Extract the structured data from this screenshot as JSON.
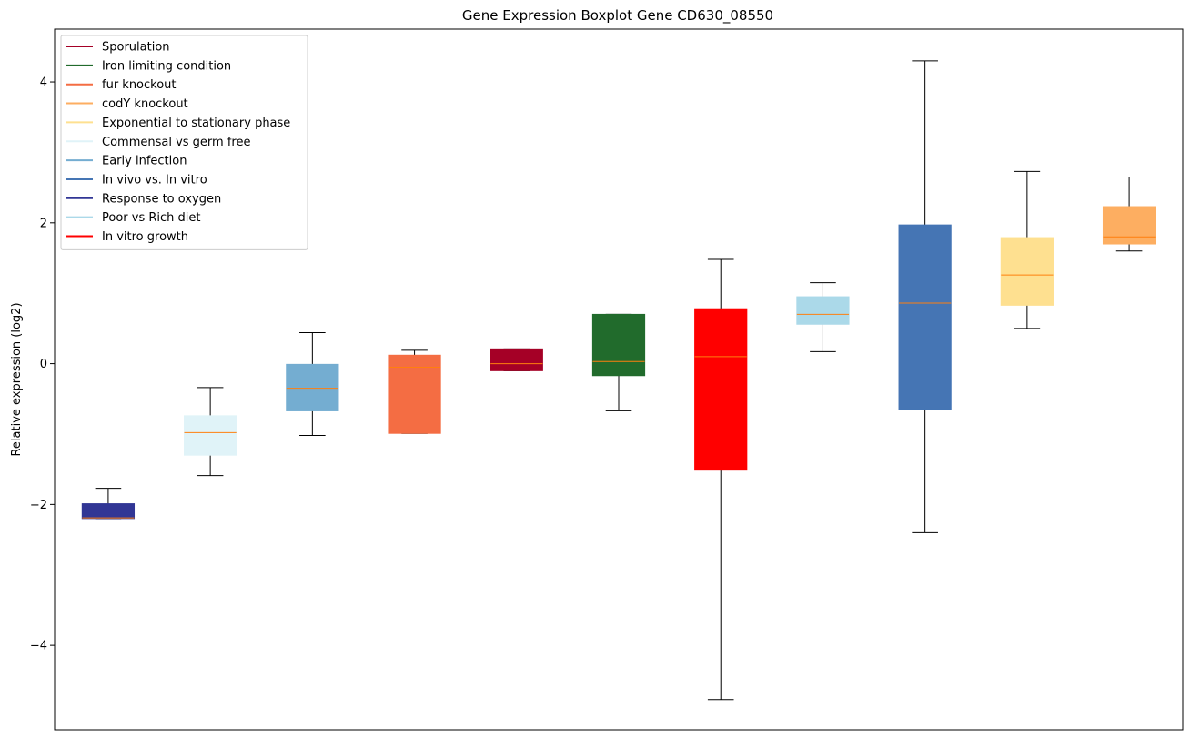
{
  "chart_data": {
    "type": "boxplot",
    "title": "Gene Expression Boxplot Gene CD630_08550",
    "xlabel": "",
    "ylabel": "Relative expression (log2)",
    "ylim": [
      -5.2,
      4.75
    ],
    "yticks": [
      -4,
      -2,
      0,
      2,
      4
    ],
    "ytick_labels": [
      "−4",
      "−2",
      "0",
      "2",
      "4"
    ],
    "grid": false,
    "legend_position": "top-left",
    "median_color": "#ff7f0e",
    "legend": [
      {
        "label": "Sporulation",
        "color": "#a50026"
      },
      {
        "label": "Iron limiting condition",
        "color": "#216b2c"
      },
      {
        "label": "fur knockout",
        "color": "#f46d43"
      },
      {
        "label": "codY knockout",
        "color": "#fdae61"
      },
      {
        "label": "Exponential to stationary phase",
        "color": "#fee090"
      },
      {
        "label": "Commensal vs germ free",
        "color": "#e0f3f8"
      },
      {
        "label": "Early infection",
        "color": "#74add1"
      },
      {
        "label": "In vivo vs. In vitro",
        "color": "#4575b4"
      },
      {
        "label": "Response to oxygen",
        "color": "#313695"
      },
      {
        "label": "Poor vs Rich diet",
        "color": "#abd9e9"
      },
      {
        "label": "In vitro growth",
        "color": "#ff0000"
      }
    ],
    "boxes": [
      {
        "group": "Response to oxygen",
        "color": "#313695",
        "whislo": -2.2,
        "q1": -2.2,
        "med": -2.19,
        "q3": -1.99,
        "whishi": -1.77
      },
      {
        "group": "Commensal vs germ free",
        "color": "#e0f3f8",
        "whislo": -1.59,
        "q1": -1.3,
        "med": -0.98,
        "q3": -0.74,
        "whishi": -0.34
      },
      {
        "group": "Early infection",
        "color": "#74add1",
        "whislo": -1.02,
        "q1": -0.67,
        "med": -0.35,
        "q3": -0.01,
        "whishi": 0.44
      },
      {
        "group": "fur knockout",
        "color": "#f46d43",
        "whislo": -0.99,
        "q1": -0.99,
        "med": -0.05,
        "q3": 0.12,
        "whishi": 0.19
      },
      {
        "group": "Sporulation",
        "color": "#a50026",
        "whislo": -0.1,
        "q1": -0.1,
        "med": 0.0,
        "q3": 0.21,
        "whishi": 0.21
      },
      {
        "group": "Iron limiting condition",
        "color": "#216b2c",
        "whislo": -0.67,
        "q1": -0.17,
        "med": 0.03,
        "q3": 0.7,
        "whishi": 0.7
      },
      {
        "group": "In vitro growth",
        "color": "#ff0000",
        "whislo": -4.77,
        "q1": -1.5,
        "med": 0.1,
        "q3": 0.78,
        "whishi": 1.48
      },
      {
        "group": "Poor vs Rich diet",
        "color": "#abd9e9",
        "whislo": 0.17,
        "q1": 0.56,
        "med": 0.7,
        "q3": 0.95,
        "whishi": 1.15
      },
      {
        "group": "In vivo vs. In vitro",
        "color": "#4575b4",
        "whislo": -2.4,
        "q1": -0.65,
        "med": 0.86,
        "q3": 1.97,
        "whishi": 4.3
      },
      {
        "group": "Exponential to stationary phase",
        "color": "#fee090",
        "whislo": 0.5,
        "q1": 0.83,
        "med": 1.26,
        "q3": 1.79,
        "whishi": 2.73
      },
      {
        "group": "codY knockout",
        "color": "#fdae61",
        "whislo": 1.6,
        "q1": 1.7,
        "med": 1.8,
        "q3": 2.23,
        "whishi": 2.65
      }
    ]
  }
}
